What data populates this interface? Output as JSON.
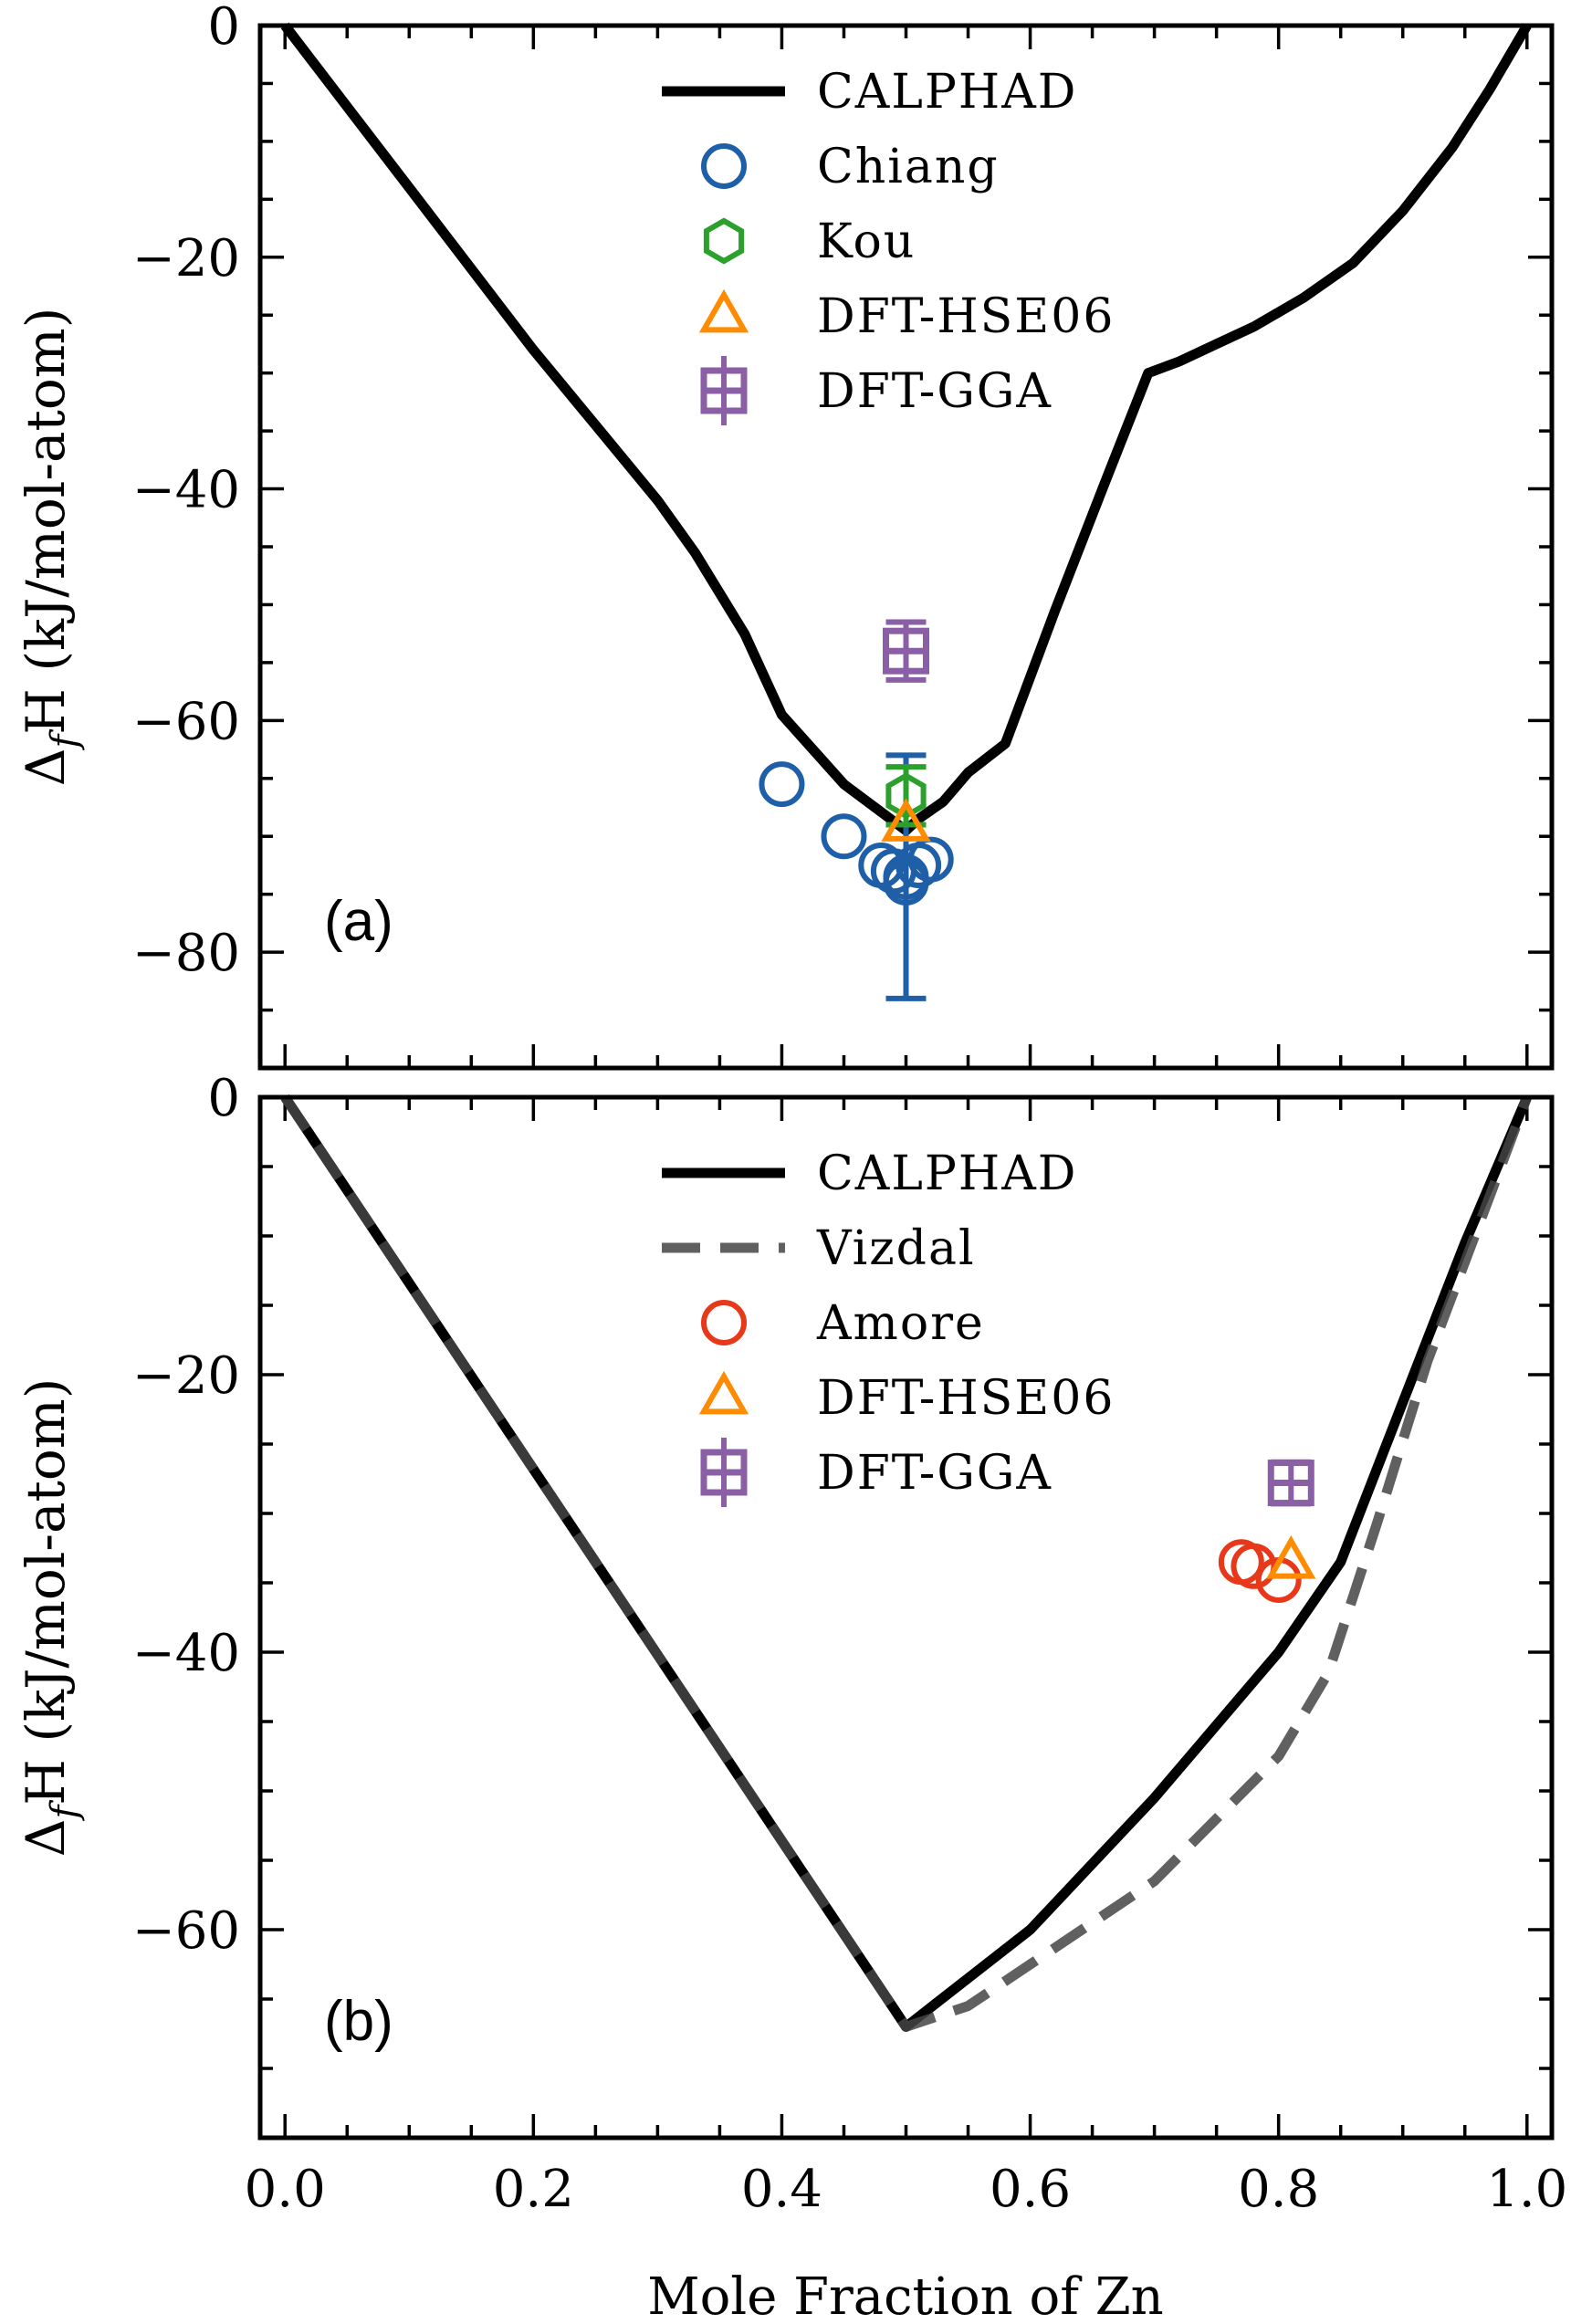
{
  "figure": {
    "xlabel": "Mole Fraction of Zn",
    "x_ticks": [
      "0.0",
      "0.2",
      "0.4",
      "0.6",
      "0.8",
      "1.0"
    ]
  },
  "chart_data": [
    {
      "type": "line",
      "panel_label": "(a)",
      "ylabel_main": "Δ",
      "ylabel_sub": "f",
      "ylabel_rest": "H (kJ/mol-atom)",
      "xlim": [
        -0.02,
        1.02
      ],
      "ylim": [
        -90,
        0
      ],
      "x_ticks": [
        0.0,
        0.2,
        0.4,
        0.6,
        0.8,
        1.0
      ],
      "y_ticks": [
        0,
        -20,
        -40,
        -60,
        -80
      ],
      "y_tick_labels": [
        "0",
        "−20",
        "−40",
        "−60",
        "−80"
      ],
      "grid": false,
      "legend_position": "top-center",
      "series": [
        {
          "name": "CALPHAD",
          "kind": "line",
          "style": "solid",
          "color": "#000000",
          "x": [
            0.0,
            0.05,
            0.1,
            0.15,
            0.2,
            0.25,
            0.3,
            0.33,
            0.37,
            0.4,
            0.45,
            0.5,
            0.51,
            0.53,
            0.55,
            0.58,
            0.62,
            0.66,
            0.695,
            0.72,
            0.75,
            0.78,
            0.82,
            0.86,
            0.9,
            0.94,
            0.97,
            1.0
          ],
          "y": [
            0,
            -7,
            -14,
            -21,
            -28,
            -34.5,
            -41,
            -45.5,
            -52.5,
            -59.5,
            -65.5,
            -69.5,
            -68.5,
            -67,
            -64.5,
            -62,
            -50.5,
            -39.5,
            -30,
            -29,
            -27.5,
            -26,
            -23.5,
            -20.5,
            -16,
            -10.5,
            -5.5,
            0
          ]
        },
        {
          "name": "Chiang",
          "kind": "marker",
          "marker": "circle",
          "color": "#1f5fa8",
          "x": [
            0.4,
            0.45,
            0.48,
            0.49,
            0.5,
            0.5,
            0.51,
            0.52
          ],
          "y": [
            -65.5,
            -70,
            -72.5,
            -73,
            -73.5,
            -74,
            -72.5,
            -72
          ],
          "error_bar": {
            "x": 0.5,
            "y": -73.5,
            "yerr": 10.5
          }
        },
        {
          "name": "Kou",
          "kind": "marker",
          "marker": "hexagon",
          "color": "#2ca02c",
          "x": [
            0.5
          ],
          "y": [
            -66.5
          ],
          "error_bar": {
            "x": 0.5,
            "y": -66.5,
            "yerr": 2.5
          }
        },
        {
          "name": "DFT-HSE06",
          "kind": "marker",
          "marker": "triangle",
          "color": "#ff8c00",
          "x": [
            0.5
          ],
          "y": [
            -69
          ]
        },
        {
          "name": "DFT-GGA",
          "kind": "marker",
          "marker": "square-errorbar",
          "color": "#8a5fa6",
          "x": [
            0.5
          ],
          "y": [
            -54
          ],
          "error_bar": {
            "x": 0.5,
            "y": -54,
            "yerr": 2.5
          }
        }
      ]
    },
    {
      "type": "line",
      "panel_label": "(b)",
      "ylabel_main": "Δ",
      "ylabel_sub": "f",
      "ylabel_rest": "H (kJ/mol-atom)",
      "xlim": [
        -0.02,
        1.02
      ],
      "ylim": [
        -75,
        0
      ],
      "x_ticks": [
        0.0,
        0.2,
        0.4,
        0.6,
        0.8,
        1.0
      ],
      "y_ticks": [
        0,
        -20,
        -40,
        -60
      ],
      "y_tick_labels": [
        "0",
        "−20",
        "−40",
        "−60"
      ],
      "grid": false,
      "legend_position": "top-center",
      "series": [
        {
          "name": "CALPHAD",
          "kind": "line",
          "style": "solid",
          "color": "#000000",
          "x": [
            0.0,
            0.1,
            0.2,
            0.3,
            0.4,
            0.5,
            0.6,
            0.7,
            0.8,
            0.85,
            0.9,
            0.95,
            1.0
          ],
          "y": [
            0,
            -13.4,
            -26.8,
            -40.2,
            -53.6,
            -67,
            -60,
            -50.5,
            -40,
            -33.5,
            -22,
            -10.5,
            0
          ]
        },
        {
          "name": "Vizdal",
          "kind": "line",
          "style": "dashed",
          "color": "#444444",
          "x": [
            0.0,
            0.1,
            0.2,
            0.3,
            0.4,
            0.5,
            0.55,
            0.6,
            0.7,
            0.8,
            0.84,
            0.88,
            0.92,
            0.96,
            1.0
          ],
          "y": [
            0,
            -13.4,
            -26.8,
            -40.2,
            -53.6,
            -67,
            -65.5,
            -62.5,
            -56.5,
            -47.5,
            -41.5,
            -30.5,
            -19,
            -9.5,
            0
          ]
        },
        {
          "name": "Amore",
          "kind": "marker",
          "marker": "circle",
          "color": "#e8381a",
          "x": [
            0.77,
            0.78,
            0.8
          ],
          "y": [
            -33.5,
            -33.8,
            -34.8
          ]
        },
        {
          "name": "DFT-HSE06",
          "kind": "marker",
          "marker": "triangle",
          "color": "#ff8c00",
          "x": [
            0.81
          ],
          "y": [
            -33.5
          ]
        },
        {
          "name": "DFT-GGA",
          "kind": "marker",
          "marker": "square-errorbar",
          "color": "#8a5fa6",
          "x": [
            0.81
          ],
          "y": [
            -27.8
          ],
          "error_bar": {
            "x": 0.81,
            "y": -27.8,
            "yerr": 1.5
          }
        }
      ]
    }
  ]
}
